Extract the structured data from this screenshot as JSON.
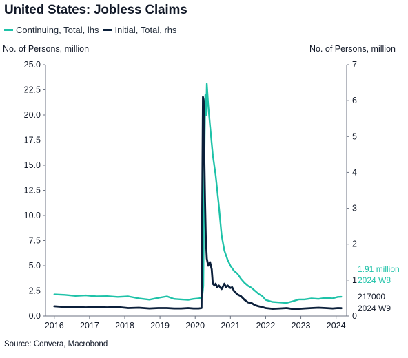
{
  "chart_data": {
    "type": "line",
    "title": "United States: Jobless Claims",
    "left_axis_label": "No. of Persons, million",
    "right_axis_label": "No. of Persons, million",
    "source": "Source: Convera, Macrobond",
    "x_ticks": [
      "2016",
      "2017",
      "2018",
      "2019",
      "2020",
      "2021",
      "2022",
      "2023",
      "2024"
    ],
    "y_left": {
      "lim": [
        0,
        25
      ],
      "ticks": [
        "0.0",
        "2.5",
        "5.0",
        "7.5",
        "10.0",
        "12.5",
        "15.0",
        "17.5",
        "20.0",
        "22.5",
        "25.0"
      ]
    },
    "y_right": {
      "lim": [
        0,
        7
      ],
      "ticks": [
        "0",
        "1",
        "2",
        "3",
        "4",
        "5",
        "6",
        "7"
      ]
    },
    "grid": false,
    "legend_position": "top-left",
    "series": [
      {
        "name": "Continuing, Total, lhs",
        "axis": "left",
        "color": "#1ec2a8",
        "x": [
          2016.0,
          2016.3,
          2016.6,
          2016.9,
          2017.2,
          2017.5,
          2017.8,
          2018.1,
          2018.4,
          2018.7,
          2018.95,
          2019.2,
          2019.4,
          2019.6,
          2019.8,
          2019.95,
          2020.1,
          2020.17,
          2020.2,
          2020.23,
          2020.25,
          2020.27,
          2020.29,
          2020.31,
          2020.33,
          2020.37,
          2020.42,
          2020.5,
          2020.58,
          2020.67,
          2020.75,
          2020.83,
          2020.92,
          2021.0,
          2021.1,
          2021.2,
          2021.3,
          2021.4,
          2021.5,
          2021.6,
          2021.7,
          2021.8,
          2021.9,
          2022.0,
          2022.2,
          2022.4,
          2022.6,
          2022.8,
          2022.95,
          2023.1,
          2023.3,
          2023.5,
          2023.7,
          2023.9,
          2024.05,
          2024.15
        ],
        "values": [
          2.15,
          2.1,
          2.0,
          2.05,
          1.95,
          1.97,
          1.9,
          1.95,
          1.75,
          1.62,
          1.8,
          1.95,
          1.7,
          1.65,
          1.6,
          1.7,
          1.75,
          1.8,
          1.9,
          3.0,
          11.0,
          18.0,
          22.0,
          20.0,
          23.1,
          21.0,
          19.0,
          16.0,
          14.0,
          11.0,
          8.0,
          6.5,
          5.6,
          5.0,
          4.5,
          4.2,
          3.7,
          3.3,
          3.0,
          2.8,
          2.5,
          2.2,
          2.0,
          1.6,
          1.4,
          1.35,
          1.3,
          1.5,
          1.65,
          1.65,
          1.75,
          1.7,
          1.8,
          1.75,
          1.9,
          1.91
        ]
      },
      {
        "name": "Initial, Total, rhs",
        "axis": "right",
        "color": "#0b1f3a",
        "x": [
          2016.0,
          2016.3,
          2016.6,
          2016.9,
          2017.2,
          2017.5,
          2017.8,
          2018.1,
          2018.4,
          2018.7,
          2018.95,
          2019.2,
          2019.4,
          2019.6,
          2019.8,
          2019.95,
          2020.1,
          2020.18,
          2020.2,
          2020.22,
          2020.24,
          2020.26,
          2020.28,
          2020.3,
          2020.33,
          2020.37,
          2020.42,
          2020.47,
          2020.5,
          2020.55,
          2020.58,
          2020.62,
          2020.67,
          2020.75,
          2020.83,
          2020.87,
          2020.92,
          2021.0,
          2021.05,
          2021.1,
          2021.2,
          2021.3,
          2021.4,
          2021.5,
          2021.6,
          2021.7,
          2021.8,
          2021.9,
          2022.0,
          2022.2,
          2022.4,
          2022.6,
          2022.8,
          2022.95,
          2023.1,
          2023.3,
          2023.5,
          2023.7,
          2023.9,
          2024.05,
          2024.15
        ],
        "values": [
          0.27,
          0.25,
          0.25,
          0.24,
          0.25,
          0.24,
          0.25,
          0.22,
          0.23,
          0.21,
          0.22,
          0.22,
          0.21,
          0.21,
          0.22,
          0.21,
          0.21,
          0.22,
          2.9,
          6.1,
          6.0,
          4.4,
          3.2,
          2.2,
          1.6,
          1.4,
          1.5,
          1.3,
          0.9,
          0.85,
          0.9,
          0.8,
          0.85,
          0.75,
          0.9,
          0.8,
          0.85,
          0.78,
          0.8,
          0.7,
          0.6,
          0.55,
          0.45,
          0.38,
          0.36,
          0.3,
          0.27,
          0.25,
          0.22,
          0.2,
          0.21,
          0.22,
          0.19,
          0.2,
          0.21,
          0.22,
          0.23,
          0.22,
          0.21,
          0.22,
          0.217
        ]
      }
    ],
    "annotations": [
      {
        "series": "Continuing, Total, lhs",
        "value_label": "1.91 million",
        "date_label": "2024 W8",
        "color": "#1ec2a8"
      },
      {
        "series": "Initial, Total, rhs",
        "value_label": "217000",
        "date_label": "2024 W9",
        "color": "#111827"
      }
    ]
  }
}
